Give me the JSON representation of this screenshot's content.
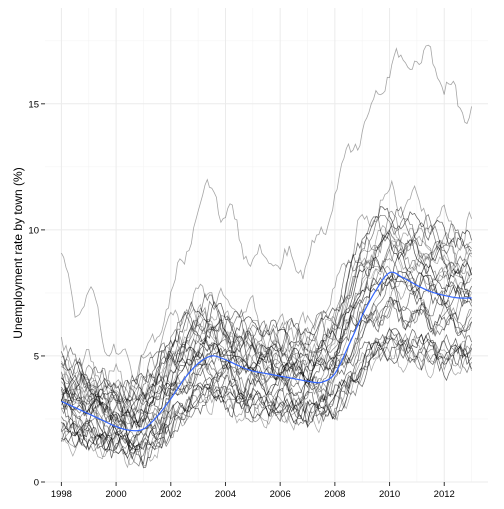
{
  "chart_data": {
    "type": "line",
    "ylabel": "Unemployment rate by town (%)",
    "xlabel": "",
    "xlim": [
      1997.4,
      2013.6
    ],
    "ylim": [
      0,
      18.8
    ],
    "x_ticks": [
      1998,
      2000,
      2002,
      2004,
      2006,
      2008,
      2010,
      2012
    ],
    "x_tick_labels": [
      "1998",
      "2000",
      "2002",
      "2004",
      "2006",
      "2008",
      "2010",
      "2012"
    ],
    "y_ticks": [
      0,
      5,
      10,
      15
    ],
    "y_tick_labels": [
      "0",
      "5",
      "10",
      "15"
    ],
    "grid": true,
    "background": "#ffffff",
    "grid_color": "#ebebeb",
    "series_color": "#000000",
    "trend_color": "#3366ff",
    "highlight_series": [
      {
        "x": [
          1998.0,
          1998.5,
          1999.0,
          1999.5,
          2000.0,
          2000.5,
          2001.0,
          2001.5,
          2002.0,
          2002.5,
          2003.0,
          2003.5,
          2004.0,
          2004.5,
          2005.0,
          2005.5,
          2006.0,
          2006.5,
          2007.0,
          2007.5,
          2008.0,
          2008.5,
          2009.0,
          2009.5,
          2010.0,
          2010.5,
          2011.0,
          2011.5,
          2012.0,
          2012.5,
          2013.0
        ],
        "y": [
          9.2,
          6.8,
          7.9,
          5.8,
          5.2,
          4.6,
          5.3,
          5.6,
          7.6,
          9.0,
          11.0,
          11.8,
          10.7,
          9.7,
          9.2,
          9.0,
          8.5,
          8.8,
          8.4,
          9.8,
          11.0,
          13.0,
          14.0,
          15.5,
          16.2,
          17.0,
          16.5,
          16.8,
          15.5,
          15.0,
          15.0
        ]
      },
      {
        "x": [
          1998.0,
          1998.5,
          1999.0,
          1999.5,
          2000.0,
          2000.5,
          2001.0,
          2001.5,
          2002.0,
          2002.5,
          2003.0,
          2003.5,
          2004.0,
          2004.5,
          2005.0,
          2005.5,
          2006.0,
          2006.5,
          2007.0,
          2007.5,
          2008.0,
          2008.5,
          2009.0,
          2009.5,
          2010.0,
          2010.5,
          2011.0,
          2011.5,
          2012.0,
          2012.5,
          2013.0
        ],
        "y": [
          5.2,
          4.9,
          4.6,
          4.1,
          4.2,
          3.8,
          4.4,
          5.2,
          6.5,
          7.0,
          7.2,
          7.6,
          7.0,
          6.6,
          6.9,
          6.4,
          6.1,
          6.2,
          6.0,
          6.7,
          7.5,
          9.0,
          10.2,
          11.0,
          11.5,
          11.2,
          10.8,
          10.5,
          10.3,
          10.0,
          10.1
        ]
      }
    ],
    "bundle": {
      "x": [
        1998.0,
        1998.5,
        1999.0,
        1999.5,
        2000.0,
        2000.5,
        2001.0,
        2001.5,
        2002.0,
        2002.5,
        2003.0,
        2003.5,
        2004.0,
        2004.5,
        2005.0,
        2005.5,
        2006.0,
        2006.5,
        2007.0,
        2007.5,
        2008.0,
        2008.5,
        2009.0,
        2009.5,
        2010.0,
        2010.5,
        2011.0,
        2011.5,
        2012.0,
        2012.5,
        2013.0
      ],
      "low": [
        1.9,
        1.7,
        1.7,
        1.4,
        1.3,
        1.2,
        1.1,
        1.5,
        2.1,
        2.7,
        3.3,
        3.4,
        3.3,
        3.0,
        2.9,
        2.8,
        2.8,
        2.7,
        2.6,
        2.7,
        2.9,
        3.6,
        4.4,
        5.0,
        5.3,
        5.1,
        5.0,
        4.9,
        4.8,
        4.8,
        4.9
      ],
      "high": [
        5.0,
        4.6,
        4.3,
        4.0,
        3.8,
        3.7,
        4.1,
        4.8,
        5.7,
        6.4,
        6.8,
        7.0,
        6.6,
        6.3,
        6.1,
        6.0,
        5.9,
        5.9,
        5.8,
        6.2,
        6.8,
        8.3,
        9.6,
        10.4,
        10.8,
        10.5,
        10.3,
        10.1,
        9.9,
        9.7,
        9.6
      ]
    },
    "trend": {
      "x": [
        1998.0,
        1998.5,
        1999.0,
        1999.5,
        2000.0,
        2000.5,
        2001.0,
        2001.5,
        2002.0,
        2002.5,
        2003.0,
        2003.5,
        2004.0,
        2004.5,
        2005.0,
        2005.5,
        2006.0,
        2006.5,
        2007.0,
        2007.5,
        2008.0,
        2008.5,
        2009.0,
        2009.5,
        2010.0,
        2010.5,
        2011.0,
        2011.5,
        2012.0,
        2012.5,
        2013.0
      ],
      "y": [
        3.2,
        2.95,
        2.7,
        2.45,
        2.2,
        2.05,
        2.1,
        2.6,
        3.3,
        4.1,
        4.7,
        5.0,
        4.85,
        4.6,
        4.4,
        4.3,
        4.2,
        4.1,
        4.0,
        3.95,
        4.3,
        5.4,
        6.6,
        7.6,
        8.3,
        8.1,
        7.8,
        7.55,
        7.4,
        7.3,
        7.3
      ]
    }
  }
}
